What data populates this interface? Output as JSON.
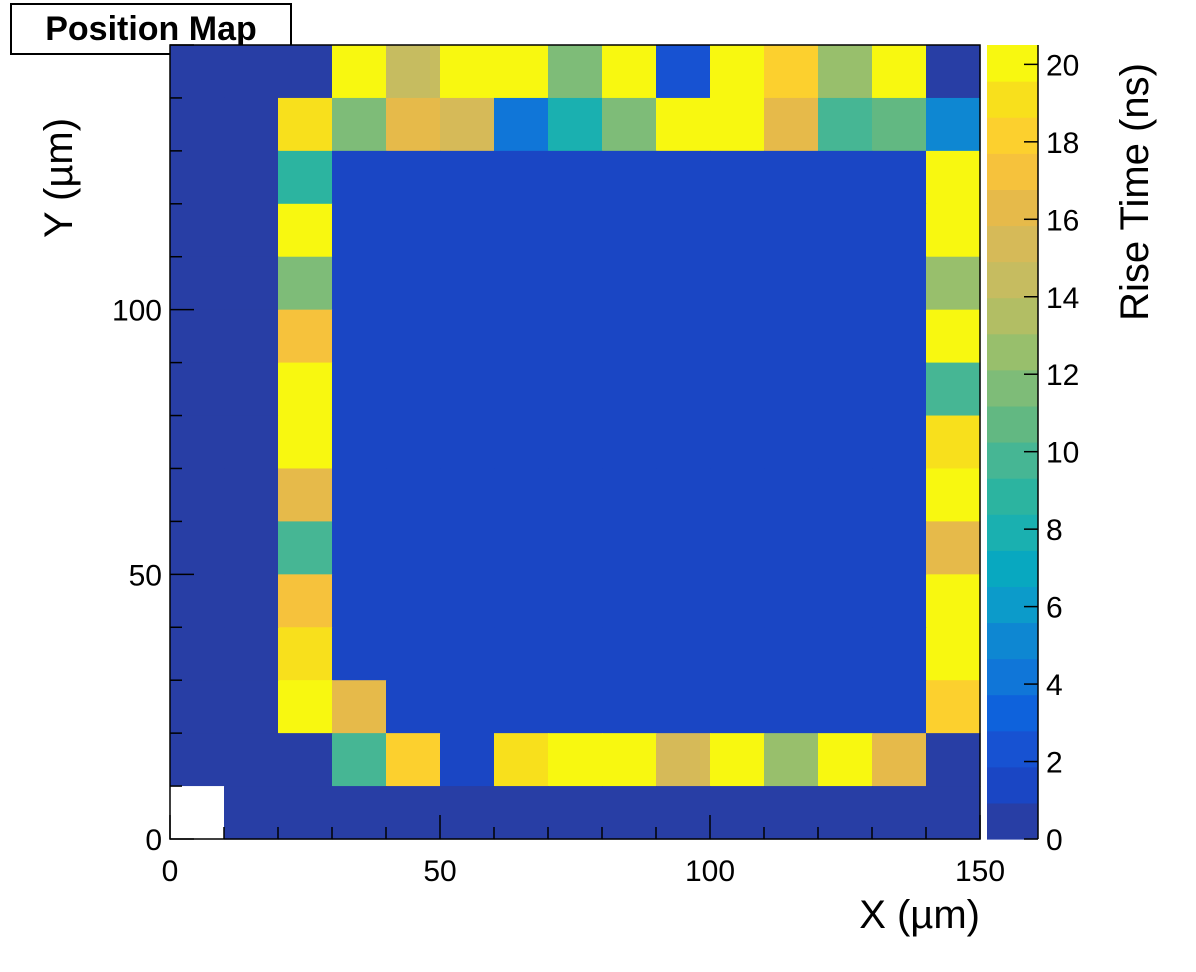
{
  "chart_data": {
    "type": "heatmap",
    "title": "Position Map",
    "xlabel": "X (µm)",
    "ylabel": "Y (µm)",
    "zlabel": "Rise Time (ns)",
    "xlim": [
      0,
      150
    ],
    "ylim": [
      0,
      150
    ],
    "zlim": [
      0,
      20.5
    ],
    "bin_width": 10,
    "x_ticks": [
      0,
      50,
      100,
      150
    ],
    "y_ticks": [
      0,
      50,
      100
    ],
    "z_ticks": [
      0,
      2,
      4,
      6,
      8,
      10,
      12,
      14,
      16,
      18,
      20
    ],
    "rows_top_to_bottom": [
      [
        0.3,
        0.3,
        0.3,
        20,
        14,
        20,
        20,
        11.5,
        20,
        2.5,
        20,
        18,
        13,
        20,
        0.3
      ],
      [
        0.3,
        0.3,
        19.5,
        11.5,
        16.5,
        15.5,
        4,
        7.5,
        11.5,
        20,
        20,
        16.5,
        9.5,
        10.5,
        5
      ],
      [
        0.3,
        0.3,
        8.5,
        1,
        1,
        1,
        1,
        1,
        1,
        1,
        1,
        1,
        1,
        1,
        20
      ],
      [
        0.3,
        0.3,
        20,
        1,
        1,
        1,
        1,
        1,
        1,
        1,
        1,
        1,
        1,
        1,
        20
      ],
      [
        0.3,
        0.3,
        12,
        1,
        1,
        1,
        1,
        1,
        1,
        1,
        1,
        1,
        1,
        1,
        13
      ],
      [
        0.3,
        0.3,
        17.5,
        1,
        1,
        1,
        1,
        1,
        1,
        1,
        1,
        1,
        1,
        1,
        20
      ],
      [
        0.3,
        0.3,
        20,
        1,
        1,
        1,
        1,
        1,
        1,
        1,
        1,
        1,
        1,
        1,
        9.5
      ],
      [
        0.3,
        0.3,
        20,
        1,
        1,
        1,
        1,
        1,
        1,
        1,
        1,
        1,
        1,
        1,
        19.5
      ],
      [
        0.3,
        0.3,
        16.5,
        1,
        1,
        1,
        1,
        1,
        1,
        1,
        1,
        1,
        1,
        1,
        20
      ],
      [
        0.3,
        0.3,
        9.5,
        1,
        1,
        1,
        1,
        1,
        1,
        1,
        1,
        1,
        1,
        1,
        16.5
      ],
      [
        0.3,
        0.3,
        17.5,
        1,
        1,
        1,
        1,
        1,
        1,
        1,
        1,
        1,
        1,
        1,
        20
      ],
      [
        0.3,
        0.3,
        19.5,
        1,
        1,
        1,
        1,
        1,
        1,
        1,
        1,
        1,
        1,
        1,
        20
      ],
      [
        0.3,
        0.3,
        20,
        16.5,
        1,
        1,
        1,
        1,
        1,
        1,
        1,
        1,
        1,
        1,
        18.5
      ],
      [
        0.3,
        0.3,
        0.3,
        9.5,
        18,
        1.5,
        19.5,
        20,
        20,
        15.5,
        20,
        13,
        20,
        16,
        0.3
      ],
      [
        null,
        0.3,
        0.3,
        0.3,
        0.3,
        0.3,
        0.3,
        0.3,
        0.3,
        0.3,
        0.3,
        0.3,
        0.3,
        0.3,
        0.3
      ]
    ],
    "palette": [
      "#283ea5",
      "#1a46c4",
      "#1752d2",
      "#0e62dc",
      "#1076d8",
      "#0e87d2",
      "#0c9bca",
      "#08a8c0",
      "#1ab0b0",
      "#2cb4a0",
      "#46b694",
      "#62b882",
      "#7ebc78",
      "#98bf6c",
      "#b2be64",
      "#c6bc60",
      "#d6ba58",
      "#e6ba4a",
      "#f6c23c",
      "#fcd02e",
      "#f8e01c",
      "#f8f810"
    ]
  }
}
